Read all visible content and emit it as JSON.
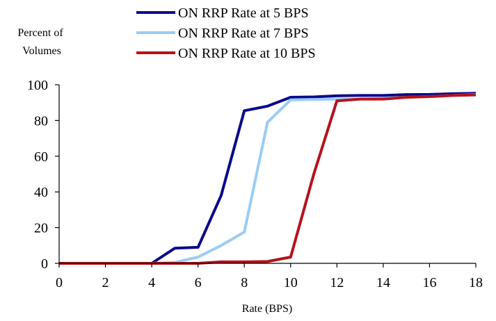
{
  "chart_data": {
    "type": "line",
    "title": "",
    "ylabel": "Percent of Volumes",
    "xlabel": "Rate (BPS)",
    "xlim": [
      0,
      18
    ],
    "ylim": [
      0,
      100
    ],
    "xticks": [
      0,
      2,
      4,
      6,
      8,
      10,
      12,
      14,
      16,
      18
    ],
    "yticks": [
      0,
      20,
      40,
      60,
      80,
      100
    ],
    "grid": false,
    "legend_position": "top",
    "x": [
      0,
      1,
      2,
      3,
      4,
      5,
      6,
      7,
      8,
      9,
      10,
      11,
      12,
      13,
      14,
      15,
      16,
      17,
      18
    ],
    "series": [
      {
        "name": "ON RRP Rate at 5 BPS",
        "color": "#0a0a8c",
        "values": [
          0,
          0,
          0,
          0,
          0,
          8.5,
          9,
          38,
          85.5,
          88,
          93,
          93.2,
          93.8,
          94,
          94,
          94.5,
          94.6,
          95,
          95.2
        ]
      },
      {
        "name": "ON RRP Rate at 7 BPS",
        "color": "#99ccf7",
        "values": [
          0,
          0,
          0,
          0,
          0,
          0.5,
          3.5,
          10,
          17.5,
          79,
          91.5,
          91.8,
          92,
          92,
          92.3,
          93,
          93.4,
          94,
          94.5
        ]
      },
      {
        "name": "ON RRP Rate at 10 BPS",
        "color": "#b5121b",
        "values": [
          0,
          0,
          0,
          0,
          0,
          0,
          0,
          0.8,
          0.8,
          1,
          3.5,
          50,
          91,
          92,
          92,
          93,
          93.4,
          94,
          94.3
        ]
      }
    ]
  }
}
